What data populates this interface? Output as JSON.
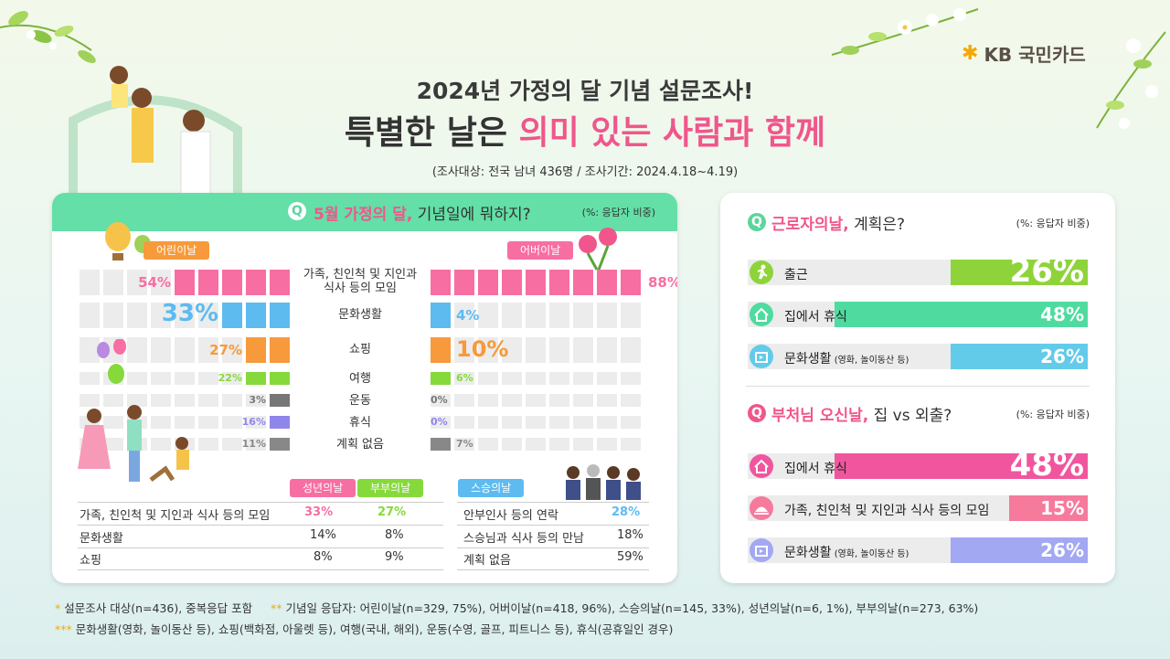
{
  "brand": {
    "logo": "KB 국민카드"
  },
  "header": {
    "title_line1": "2024년 가정의 달 기념 설문조사!",
    "title_line2_a": "특별한 날은 ",
    "title_line2_b": "의미 있는 사람과 함께",
    "survey_info": "(조사대상: 전국 남녀 436명 / 조사기간: 2024.4.18~4.19)"
  },
  "left_panel": {
    "q_icon": "Q",
    "question_highlight": "5월 가정의 달,",
    "question_rest": " 기념일에 뭐하지?",
    "unit": "(%: 응답자 비중)",
    "children_tag": "어린이날",
    "parents_tag": "어버이날",
    "rows": [
      {
        "label": "가족, 친인척 및 지인과\n식사 등의 모임",
        "children": 54,
        "children_text": "54%",
        "parents": 88,
        "parents_text": "88%"
      },
      {
        "label": "문화생활",
        "children": 33,
        "children_text": "33%",
        "parents": 4,
        "parents_text": "4%"
      },
      {
        "label": "쇼핑",
        "children": 27,
        "children_text": "27%",
        "parents": 10,
        "parents_text": "10%"
      },
      {
        "label": "여행",
        "children": 22,
        "children_text": "22%",
        "parents": 6,
        "parents_text": "6%"
      },
      {
        "label": "운동",
        "children": 3,
        "children_text": "3%",
        "parents": 0,
        "parents_text": "0%"
      },
      {
        "label": "휴식",
        "children": 16,
        "children_text": "16%",
        "parents": 0,
        "parents_text": "0%"
      },
      {
        "label": "계획 없음",
        "children": 11,
        "children_text": "11%",
        "parents": 7,
        "parents_text": "7%"
      }
    ],
    "table1": {
      "tag_a": "성년의날",
      "tag_b": "부부의날",
      "rows": [
        {
          "label": "가족, 친인척 및 지인과 식사 등의 모임",
          "a": "33%",
          "b": "27%"
        },
        {
          "label": "문화생활",
          "a": "14%",
          "b": "8%"
        },
        {
          "label": "쇼핑",
          "a": "8%",
          "b": "9%"
        }
      ]
    },
    "table2": {
      "tag": "스승의날",
      "rows": [
        {
          "label": "안부인사 등의 연락",
          "v": "28%"
        },
        {
          "label": "스승님과 식사 등의 만남",
          "v": "18%"
        },
        {
          "label": "계획 없음",
          "v": "59%"
        }
      ]
    }
  },
  "right_panel": {
    "labor": {
      "q_highlight": "근로자의날,",
      "q_rest": " 계획은?",
      "unit": "(%: 응답자 비중)",
      "items": [
        {
          "icon": "running-person-icon",
          "label": "출근",
          "sub": "",
          "value": 26,
          "text": "26%",
          "color": "#8fd33a"
        },
        {
          "icon": "house-icon",
          "label": "집에서 휴식",
          "sub": "",
          "value": 48,
          "text": "48%",
          "color": "#4fdba0"
        },
        {
          "icon": "ticket-icon",
          "label": "문화생활",
          "sub": "(영화, 놀이동산 등)",
          "value": 26,
          "text": "26%",
          "color": "#63cbea"
        }
      ]
    },
    "buddha": {
      "q_highlight": "부처님 오신날,",
      "q_rest": " 집 vs 외출?",
      "unit": "(%: 응답자 비중)",
      "items": [
        {
          "icon": "house-icon",
          "label": "집에서 휴식",
          "sub": "",
          "value": 48,
          "text": "48%",
          "color": "#f0569e"
        },
        {
          "icon": "dining-icon",
          "label": "가족, 친인척 및 지인과 식사 등의   모임",
          "sub": "",
          "value": 15,
          "text": "15%",
          "color": "#f57a9c"
        },
        {
          "icon": "ticket-icon",
          "label": "문화생활",
          "sub": "(영화, 놀이동산 등)",
          "value": 26,
          "text": "26%",
          "color": "#a3a8f3"
        }
      ]
    }
  },
  "footnotes": {
    "f1_star": "*",
    "f1": "설문조사 대상(n=436), 중복응답 포함",
    "f2_star": "**",
    "f2": "기념일 응답자: 어린이날(n=329, 75%), 어버이날(n=418, 96%), 스승의날(n=145, 33%), 성년의날(n=6, 1%), 부부의날(n=273, 63%)",
    "f3_star": "***",
    "f3": "문화생활(영화, 놀이동산 등), 쇼핑(백화점, 아울렛 등), 여행(국내, 해외), 운동(수영, 골프, 피트니스 등), 휴식(공휴일인 경우)"
  },
  "colors": {
    "row_colors": [
      "#f76ea2",
      "#5dbbf0",
      "#f79a3b",
      "#86d93b",
      "#777777",
      "#8f86ea",
      "#888888"
    ],
    "highlight": "#f0568c",
    "header_green": "#63dfa7"
  }
}
